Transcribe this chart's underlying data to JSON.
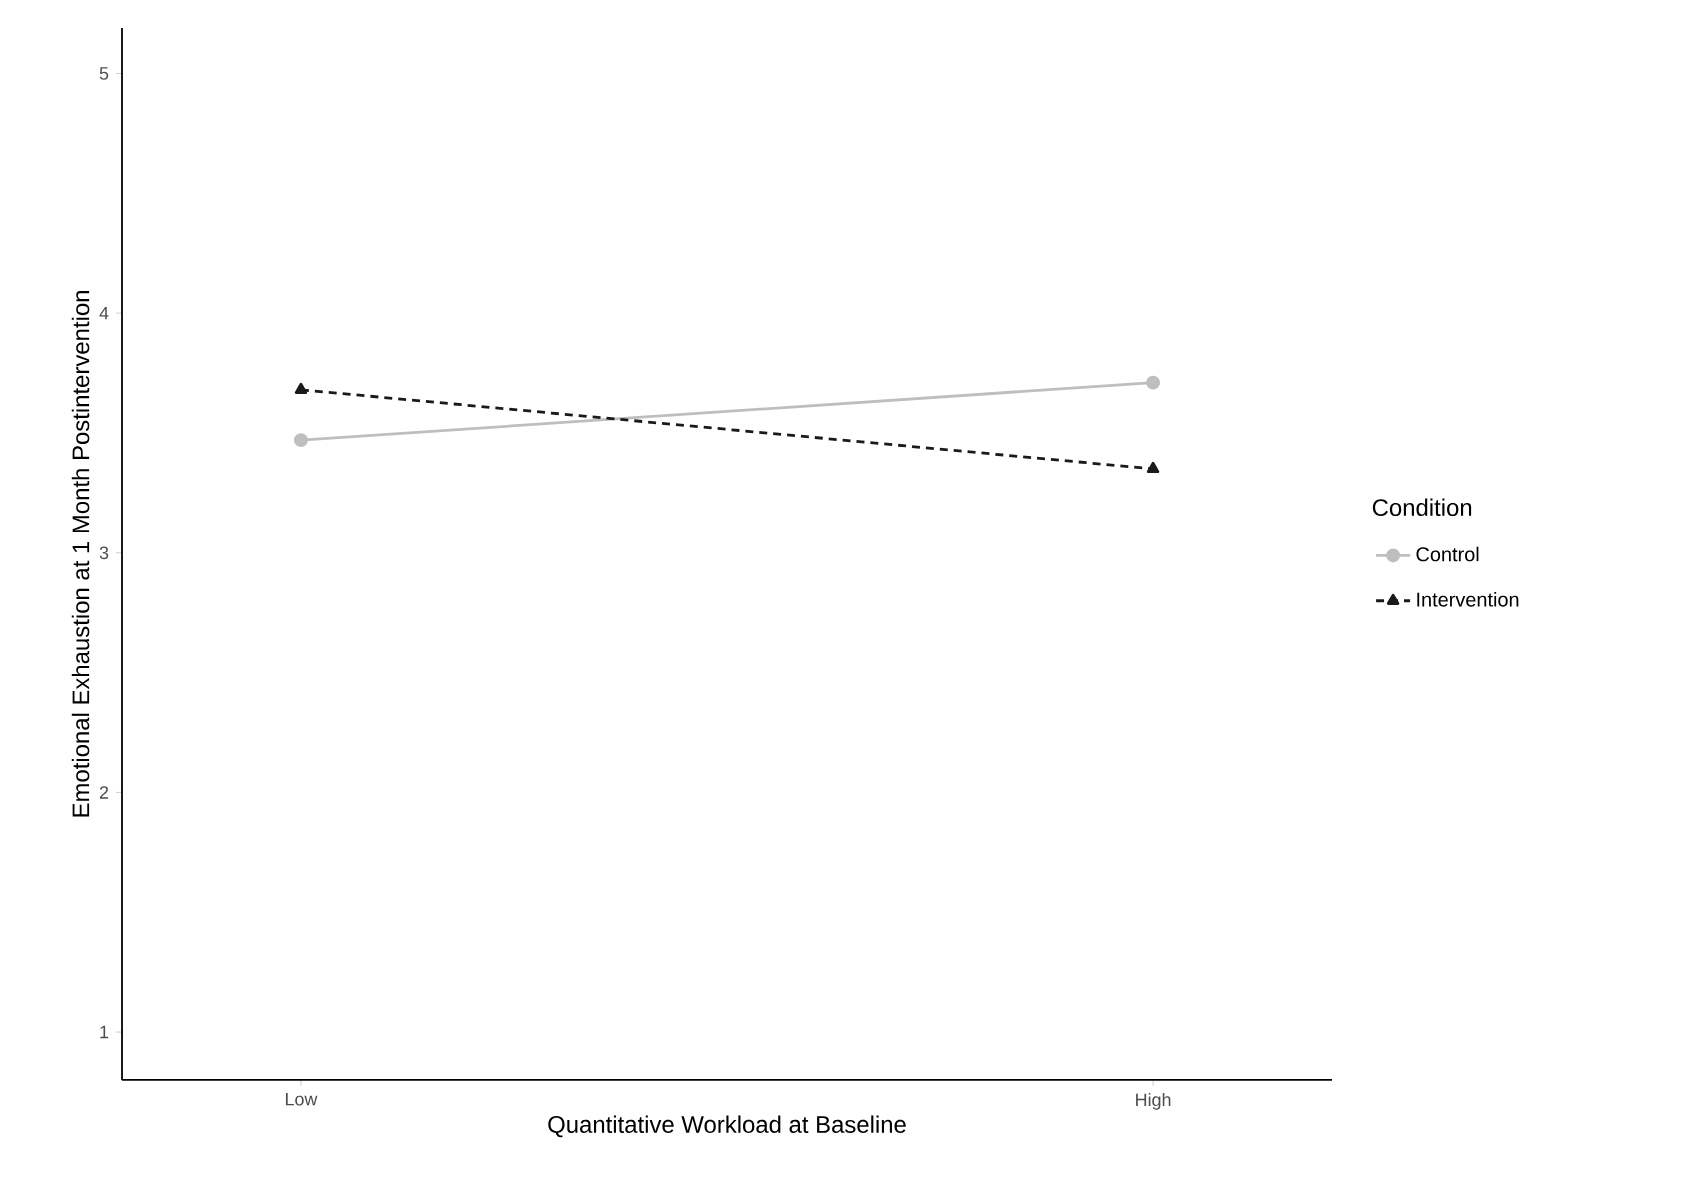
{
  "chart_data": {
    "type": "line",
    "xlabel": "Quantitative Workload at Baseline",
    "ylabel": "Emotional Exhaustion at 1 Month Postintervention",
    "legend_title": "Condition",
    "categories": [
      "Low",
      "High"
    ],
    "series": [
      {
        "name": "Control",
        "color": "#bebebe",
        "values": [
          3.47,
          3.71
        ],
        "marker": "circle",
        "line_style": "solid"
      },
      {
        "name": "Intervention",
        "color": "#1a1a1a",
        "values": [
          3.68,
          3.35
        ],
        "marker": "triangle",
        "line_style": "dashed"
      }
    ],
    "ylim": [
      0.8,
      5.19
    ],
    "yticks": [
      1,
      2,
      3,
      4,
      5
    ],
    "grid": false,
    "legend": "right"
  }
}
